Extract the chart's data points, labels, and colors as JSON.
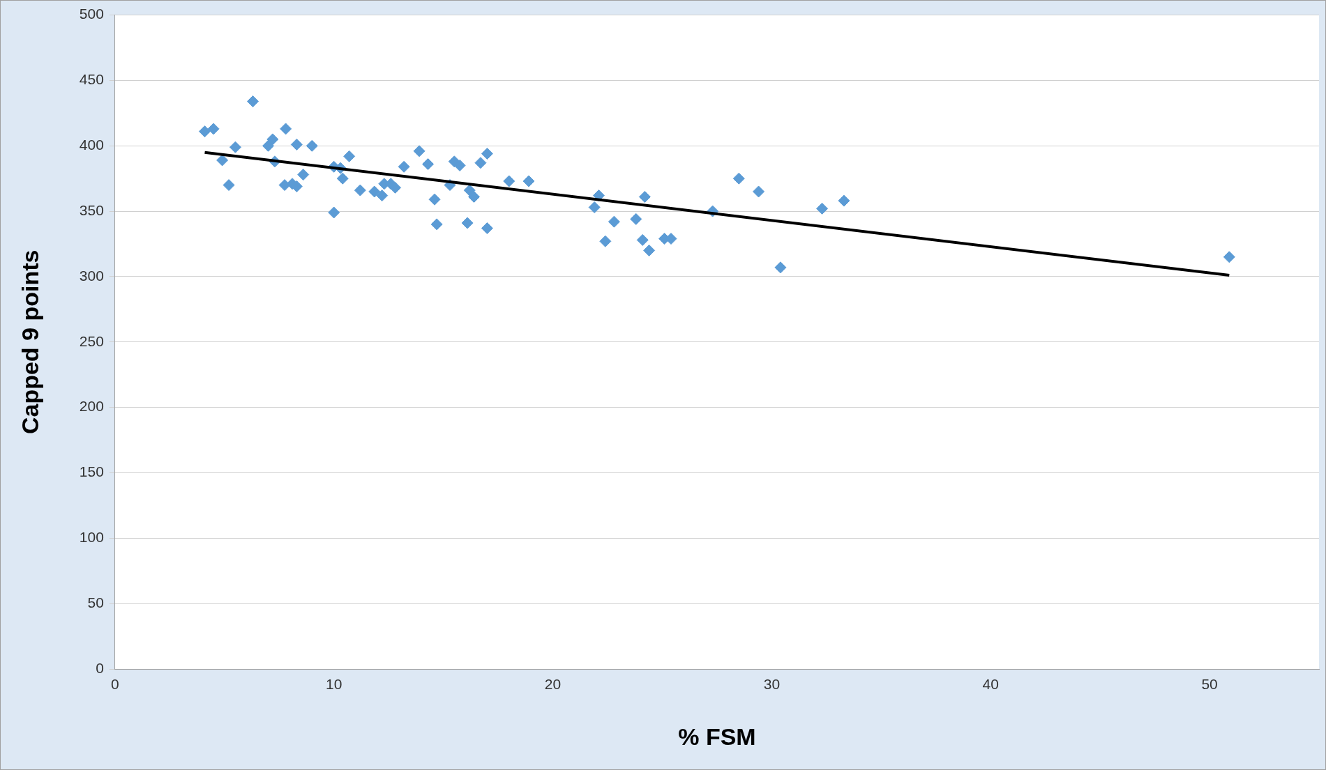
{
  "chart_data": {
    "type": "scatter",
    "xlabel": "% FSM",
    "ylabel": "Capped 9 points",
    "xlim": [
      0,
      55
    ],
    "xticks": [
      0,
      10,
      20,
      30,
      40,
      50
    ],
    "ylim": [
      0,
      500
    ],
    "yticks": [
      0,
      50,
      100,
      150,
      200,
      250,
      300,
      350,
      400,
      450,
      500
    ],
    "grid": "y",
    "marker": "diamond",
    "series": [
      {
        "color": "#5b9bd5",
        "x": [
          4.1,
          4.5,
          4.9,
          5.2,
          5.5,
          6.3,
          7.0,
          7.2,
          7.3,
          7.8,
          7.75,
          8.1,
          8.3,
          8.3,
          8.6,
          9.0,
          10.0,
          10.0,
          10.3,
          10.4,
          10.7,
          11.2,
          11.85,
          12.2,
          12.3,
          12.6,
          12.8,
          13.2,
          13.9,
          14.3,
          14.6,
          14.7,
          15.3,
          15.5,
          15.75,
          16.1,
          16.2,
          16.4,
          16.7,
          17.0,
          17.0,
          18.0,
          18.9,
          21.9,
          22.1,
          22.4,
          22.8,
          23.8,
          24.1,
          24.2,
          24.4,
          25.1,
          25.4,
          27.3,
          28.5,
          29.4,
          30.4,
          32.3,
          33.3,
          50.9
        ],
        "values": [
          411,
          413,
          389,
          370,
          399,
          434,
          400,
          405,
          388,
          413,
          370,
          371,
          401,
          369,
          378,
          400,
          384,
          349,
          383,
          375,
          392,
          366,
          365,
          362,
          371,
          371,
          368,
          384,
          396,
          386,
          359,
          340,
          370,
          388,
          385,
          341,
          366,
          361,
          387,
          394,
          337,
          373,
          373,
          353,
          362,
          327,
          342,
          344,
          328,
          361,
          320,
          329,
          329,
          350,
          375,
          365,
          307,
          352,
          358,
          315
        ]
      },
      {
        "type": "line",
        "color": "#000000",
        "marker": "none",
        "x": [
          4.1,
          50.9
        ],
        "values": [
          395,
          301
        ]
      }
    ]
  }
}
